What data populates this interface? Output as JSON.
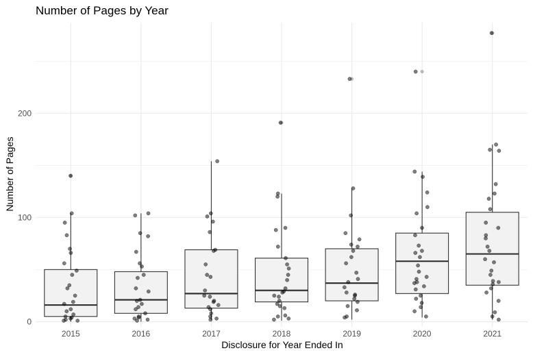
{
  "chart_data": {
    "type": "boxplot",
    "title": "Number of Pages by Year",
    "xlabel": "Disclosure for Year Ended In",
    "ylabel": "Number of Pages",
    "categories": [
      "2015",
      "2016",
      "2017",
      "2018",
      "2019",
      "2020",
      "2021"
    ],
    "ylim": [
      -5,
      287
    ],
    "yticks": [
      0,
      100,
      200
    ],
    "grid": true,
    "colors": {
      "box_fill": "#f2f2f2",
      "box_stroke": "#333333",
      "point": "#000000",
      "grid": "#ebebeb"
    },
    "boxes": [
      {
        "category": "2015",
        "q1": 5,
        "median": 16,
        "q3": 50,
        "whisker_low": 0,
        "whisker_high": 104,
        "outliers": [
          140
        ]
      },
      {
        "category": "2016",
        "q1": 8,
        "median": 21,
        "q3": 48,
        "whisker_low": 0,
        "whisker_high": 104,
        "outliers": []
      },
      {
        "category": "2017",
        "q1": 13,
        "median": 27,
        "q3": 69,
        "whisker_low": 2,
        "whisker_high": 154,
        "outliers": []
      },
      {
        "category": "2018",
        "q1": 19,
        "median": 30,
        "q3": 61,
        "whisker_low": 1,
        "whisker_high": 123,
        "outliers": [
          191
        ]
      },
      {
        "category": "2019",
        "q1": 20,
        "median": 37,
        "q3": 70,
        "whisker_low": 2,
        "whisker_high": 128,
        "outliers": [
          233
        ]
      },
      {
        "category": "2020",
        "q1": 27,
        "median": 58,
        "q3": 85,
        "whisker_low": 4,
        "whisker_high": 144,
        "outliers": [
          240
        ]
      },
      {
        "category": "2021",
        "q1": 35,
        "median": 65,
        "q3": 105,
        "whisker_low": 2,
        "whisker_high": 170,
        "outliers": [
          277
        ]
      }
    ],
    "points": [
      {
        "category": "2015",
        "values": [
          140,
          104,
          95,
          83,
          70,
          66,
          56,
          49,
          45,
          35,
          32,
          25,
          19,
          17,
          12,
          10,
          7,
          5,
          4,
          3,
          2,
          1,
          1
        ]
      },
      {
        "category": "2016",
        "values": [
          104,
          102,
          85,
          82,
          67,
          56,
          53,
          45,
          42,
          32,
          29,
          21,
          20,
          17,
          14,
          12,
          8,
          5,
          4,
          3,
          2,
          1
        ]
      },
      {
        "category": "2017",
        "values": [
          154,
          104,
          101,
          96,
          86,
          69,
          68,
          55,
          45,
          43,
          30,
          25,
          24,
          20,
          19,
          16,
          14,
          12,
          8,
          5,
          3,
          2
        ]
      },
      {
        "category": "2018",
        "values": [
          191,
          123,
          120,
          90,
          88,
          72,
          61,
          55,
          51,
          45,
          40,
          32,
          29,
          28,
          25,
          24,
          20,
          17,
          15,
          13,
          6,
          5,
          3,
          2
        ]
      },
      {
        "category": "2019",
        "values": [
          233,
          128,
          102,
          85,
          79,
          74,
          72,
          68,
          62,
          56,
          47,
          41,
          38,
          33,
          28,
          26,
          25,
          22,
          19,
          15,
          11,
          5,
          4
        ]
      },
      {
        "category": "2020",
        "values": [
          240,
          144,
          139,
          124,
          110,
          104,
          90,
          83,
          73,
          68,
          66,
          62,
          54,
          48,
          43,
          41,
          38,
          37,
          34,
          31,
          25,
          22,
          18,
          14,
          10,
          5
        ]
      },
      {
        "category": "2021",
        "values": [
          277,
          170,
          165,
          164,
          132,
          123,
          118,
          108,
          95,
          90,
          83,
          80,
          72,
          68,
          60,
          57,
          49,
          45,
          39,
          38,
          36,
          32,
          28,
          20,
          9,
          5,
          2
        ]
      }
    ]
  }
}
